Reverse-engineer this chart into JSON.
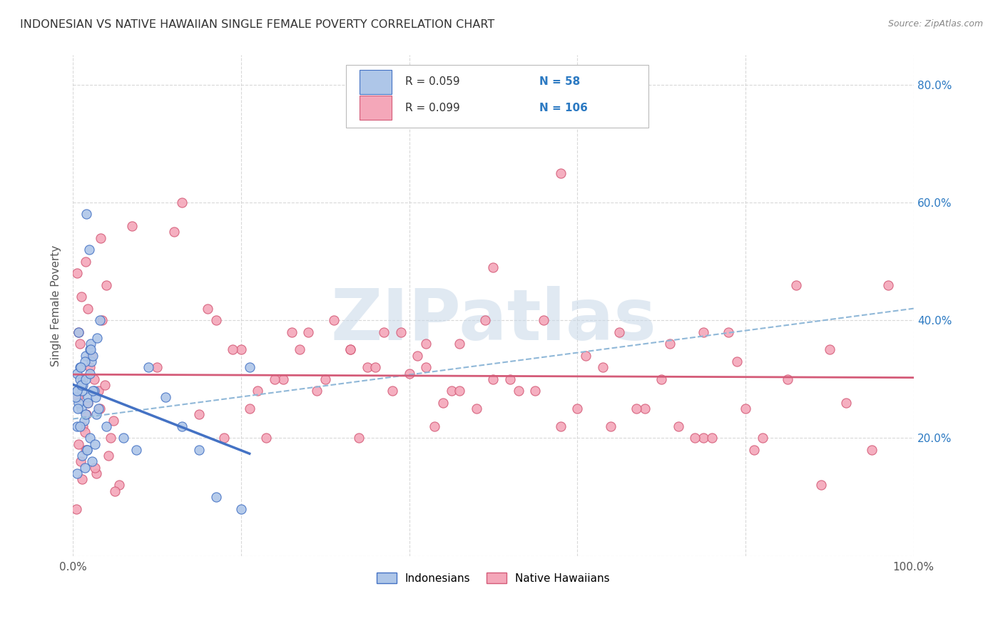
{
  "title": "INDONESIAN VS NATIVE HAWAIIAN SINGLE FEMALE POVERTY CORRELATION CHART",
  "source": "Source: ZipAtlas.com",
  "ylabel": "Single Female Poverty",
  "indonesian_R": "0.059",
  "indonesian_N": "58",
  "hawaiian_R": "0.099",
  "hawaiian_N": "106",
  "indonesian_color": "#aec6e8",
  "hawaiian_color": "#f4a7b9",
  "indonesian_line_color": "#4472c4",
  "hawaiian_line_color": "#d45b78",
  "dashed_line_color": "#90b8d8",
  "watermark_text": "ZIPatlas",
  "watermark_color": "#c8d8e8",
  "indonesian_scatter_x": [
    0.005,
    0.008,
    0.01,
    0.012,
    0.015,
    0.018,
    0.02,
    0.022,
    0.025,
    0.028,
    0.005,
    0.007,
    0.01,
    0.013,
    0.016,
    0.019,
    0.021,
    0.024,
    0.027,
    0.03,
    0.005,
    0.008,
    0.011,
    0.014,
    0.017,
    0.02,
    0.023,
    0.026,
    0.029,
    0.032,
    0.005,
    0.007,
    0.009,
    0.012,
    0.015,
    0.018,
    0.021,
    0.024,
    0.003,
    0.006,
    0.008,
    0.011,
    0.014,
    0.017,
    0.04,
    0.06,
    0.075,
    0.09,
    0.11,
    0.13,
    0.15,
    0.17,
    0.2,
    0.21,
    0.005,
    0.01,
    0.015,
    0.02
  ],
  "indonesian_scatter_y": [
    0.28,
    0.32,
    0.25,
    0.3,
    0.34,
    0.27,
    0.35,
    0.33,
    0.28,
    0.24,
    0.31,
    0.26,
    0.29,
    0.23,
    0.58,
    0.52,
    0.36,
    0.34,
    0.27,
    0.25,
    0.22,
    0.3,
    0.28,
    0.33,
    0.18,
    0.2,
    0.16,
    0.19,
    0.37,
    0.4,
    0.14,
    0.38,
    0.32,
    0.29,
    0.24,
    0.26,
    0.35,
    0.28,
    0.27,
    0.25,
    0.22,
    0.17,
    0.15,
    0.18,
    0.22,
    0.2,
    0.18,
    0.32,
    0.27,
    0.22,
    0.18,
    0.1,
    0.08,
    0.32,
    0.28,
    0.29,
    0.3,
    0.31
  ],
  "hawaiian_scatter_x": [
    0.005,
    0.01,
    0.02,
    0.03,
    0.015,
    0.008,
    0.025,
    0.018,
    0.012,
    0.035,
    0.007,
    0.022,
    0.016,
    0.04,
    0.045,
    0.015,
    0.009,
    0.028,
    0.055,
    0.018,
    0.038,
    0.006,
    0.032,
    0.048,
    0.014,
    0.007,
    0.042,
    0.026,
    0.011,
    0.05,
    0.004,
    0.033,
    0.07,
    0.1,
    0.12,
    0.15,
    0.18,
    0.2,
    0.22,
    0.25,
    0.28,
    0.3,
    0.33,
    0.35,
    0.38,
    0.4,
    0.42,
    0.45,
    0.48,
    0.5,
    0.42,
    0.44,
    0.33,
    0.36,
    0.39,
    0.41,
    0.46,
    0.55,
    0.58,
    0.5,
    0.65,
    0.68,
    0.7,
    0.72,
    0.75,
    0.8,
    0.85,
    0.9,
    0.95,
    0.97,
    0.17,
    0.19,
    0.23,
    0.26,
    0.29,
    0.58,
    0.56,
    0.6,
    0.63,
    0.67,
    0.75,
    0.78,
    0.82,
    0.86,
    0.89,
    0.92,
    0.13,
    0.16,
    0.21,
    0.24,
    0.27,
    0.31,
    0.34,
    0.37,
    0.43,
    0.46,
    0.49,
    0.52,
    0.76,
    0.79,
    0.53,
    0.61,
    0.64,
    0.71,
    0.74,
    0.81
  ],
  "hawaiian_scatter_y": [
    0.48,
    0.44,
    0.32,
    0.28,
    0.5,
    0.36,
    0.3,
    0.26,
    0.22,
    0.4,
    0.38,
    0.34,
    0.24,
    0.46,
    0.2,
    0.18,
    0.16,
    0.14,
    0.12,
    0.42,
    0.29,
    0.27,
    0.25,
    0.23,
    0.21,
    0.19,
    0.17,
    0.15,
    0.13,
    0.11,
    0.08,
    0.54,
    0.56,
    0.32,
    0.55,
    0.24,
    0.2,
    0.35,
    0.28,
    0.3,
    0.38,
    0.3,
    0.35,
    0.32,
    0.28,
    0.31,
    0.36,
    0.28,
    0.25,
    0.3,
    0.32,
    0.26,
    0.35,
    0.32,
    0.38,
    0.34,
    0.28,
    0.28,
    0.22,
    0.49,
    0.38,
    0.25,
    0.3,
    0.22,
    0.38,
    0.25,
    0.3,
    0.35,
    0.18,
    0.46,
    0.4,
    0.35,
    0.2,
    0.38,
    0.28,
    0.65,
    0.4,
    0.25,
    0.32,
    0.25,
    0.2,
    0.38,
    0.2,
    0.46,
    0.12,
    0.26,
    0.6,
    0.42,
    0.25,
    0.3,
    0.35,
    0.4,
    0.2,
    0.38,
    0.22,
    0.36,
    0.4,
    0.3,
    0.2,
    0.33,
    0.28,
    0.34,
    0.22,
    0.36,
    0.2,
    0.18
  ],
  "x_tick_positions": [
    0.0,
    0.2,
    0.4,
    0.6,
    0.8,
    1.0
  ],
  "x_tick_labels": [
    "0.0%",
    "",
    "",
    "",
    "",
    "100.0%"
  ],
  "y_tick_positions": [
    0.0,
    0.2,
    0.4,
    0.6,
    0.8
  ],
  "y_right_tick_labels": [
    "",
    "20.0%",
    "40.0%",
    "60.0%",
    "80.0%"
  ],
  "xlim": [
    0.0,
    1.0
  ],
  "ylim": [
    0.0,
    0.85
  ]
}
